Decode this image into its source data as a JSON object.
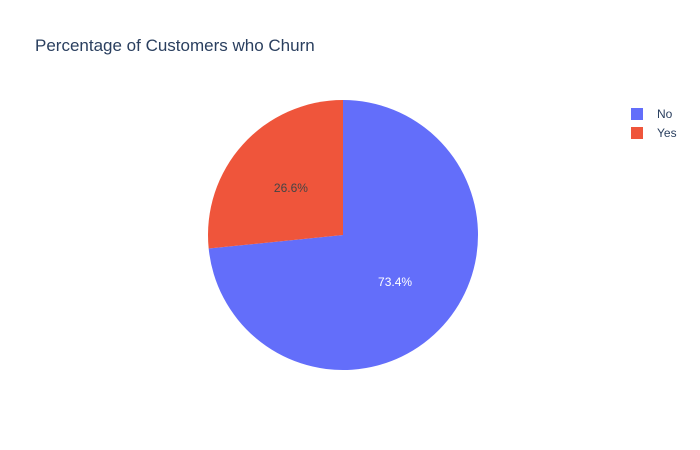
{
  "chart_data": {
    "type": "pie",
    "title": "Percentage of Customers who Churn",
    "slices": [
      {
        "label": "No",
        "value": 73.4,
        "text": "73.4%",
        "color": "#636efa",
        "text_color": "#ffffff"
      },
      {
        "label": "Yes",
        "value": 26.6,
        "text": "26.6%",
        "color": "#ef553b",
        "text_color": "#444444"
      }
    ],
    "legend": {
      "placement": "top-right",
      "entries": [
        "No",
        "Yes"
      ]
    }
  },
  "colors": {
    "title": "#2a3f5f",
    "legend_text": "#2a3f5f",
    "slice_border": "#ffffff"
  }
}
